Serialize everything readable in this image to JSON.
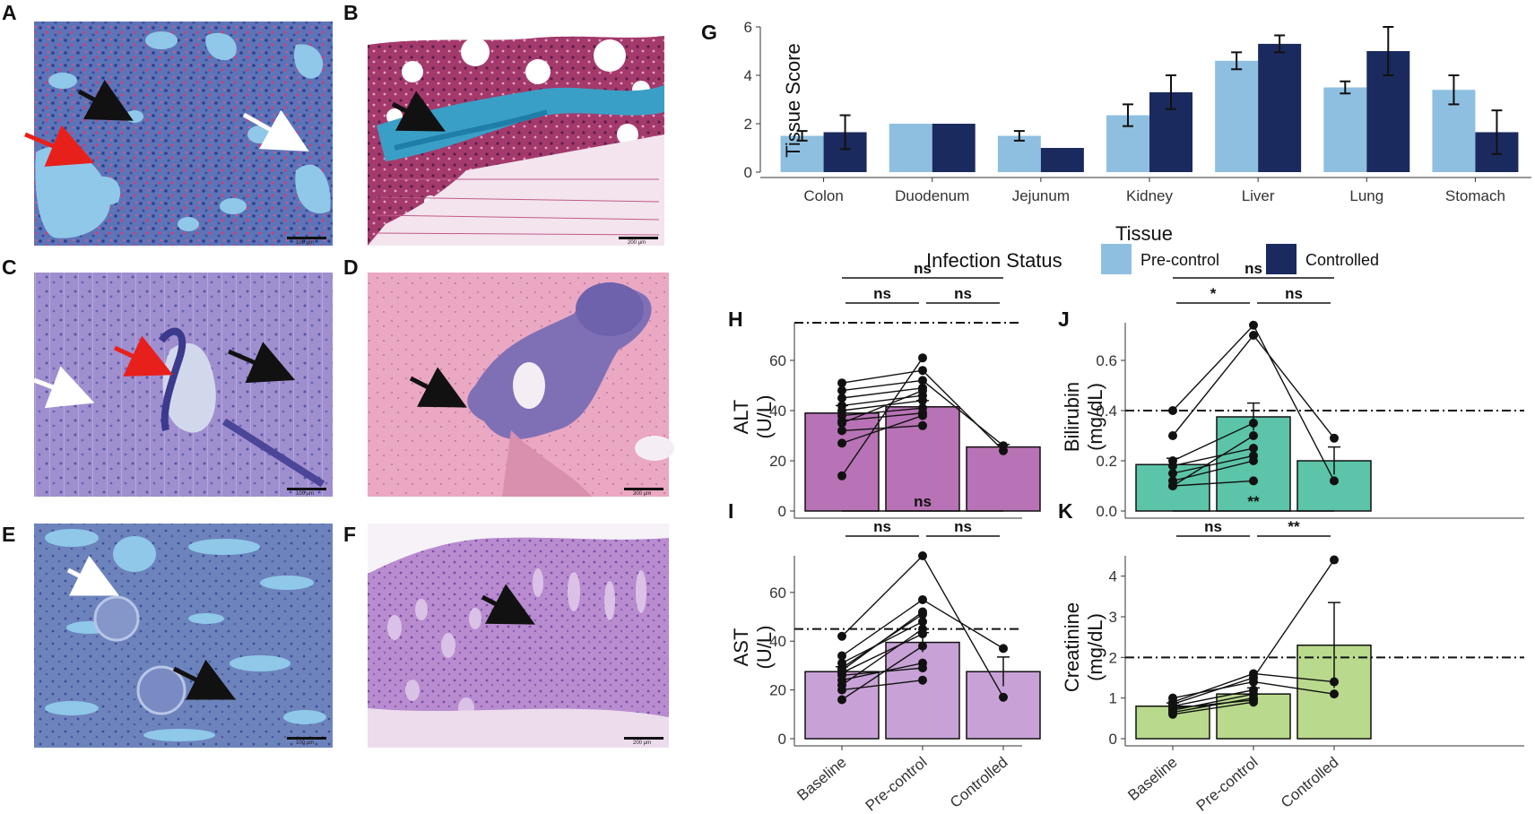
{
  "panels": {
    "A": {
      "label": "A",
      "kind": "lung"
    },
    "B": {
      "label": "B",
      "kind": "lung-trichrome"
    },
    "C": {
      "label": "C",
      "kind": "liver"
    },
    "D": {
      "label": "D",
      "kind": "liver-pink"
    },
    "E": {
      "label": "E",
      "kind": "kidney"
    },
    "F": {
      "label": "F",
      "kind": "stomach"
    }
  },
  "scalebars": {
    "A": "100 µm",
    "B": "200 µm",
    "C": "100 µm",
    "D": "200 µm",
    "E": "100 µm",
    "F": "200 µm"
  },
  "colors": {
    "precontrol": "#8fbfe0",
    "controlled": "#1b2a5e",
    "alt": "#b773b5",
    "ast": "#c8a2d6",
    "bilirubin": "#5cc4a8",
    "creatinine": "#b9d98c"
  },
  "legend": {
    "title": "Infection Status",
    "items": [
      {
        "label": "Pre-control",
        "color": "#8fbfe0"
      },
      {
        "label": "Controlled",
        "color": "#1b2a5e"
      }
    ]
  },
  "chart_data": [
    {
      "panel": "G",
      "type": "bar",
      "xlabel": "Tissue",
      "ylabel": "Tissue Score",
      "ylim": [
        0,
        6
      ],
      "yticks": [
        0,
        2,
        4,
        6
      ],
      "categories": [
        "Colon",
        "Duodenum",
        "Jejunum",
        "Kidney",
        "Liver",
        "Lung",
        "Stomach"
      ],
      "series": [
        {
          "name": "Pre-control",
          "values": [
            1.5,
            2.0,
            1.5,
            2.35,
            4.6,
            3.5,
            3.4
          ],
          "err": [
            0.2,
            0.0,
            0.2,
            0.45,
            0.35,
            0.25,
            0.6
          ]
        },
        {
          "name": "Controlled",
          "values": [
            1.65,
            2.0,
            1.0,
            3.3,
            5.3,
            5.0,
            1.65
          ],
          "err": [
            0.7,
            0.0,
            0.0,
            0.7,
            0.35,
            1.0,
            0.9
          ]
        }
      ]
    },
    {
      "panel": "H",
      "type": "bar",
      "ylabel": "ALT\n(U/L)",
      "ylim": [
        0,
        75
      ],
      "yticks": [
        0,
        20,
        40,
        60
      ],
      "refline": 75,
      "categories": [
        "Baseline",
        "Pre-control",
        "Controlled"
      ],
      "values": [
        39,
        41.5,
        25.5
      ],
      "err": [
        3,
        2.5,
        1
      ],
      "points": [
        [
          14,
          61
        ],
        [
          27,
          38
        ],
        [
          32,
          34
        ],
        [
          35,
          48
        ],
        [
          36,
          39
        ],
        [
          38,
          41
        ],
        [
          40,
          44
        ],
        [
          42,
          46
        ],
        [
          45,
          49
        ],
        [
          48,
          52
        ],
        [
          51,
          56
        ]
      ],
      "controlled_points": [
        24,
        26
      ],
      "comparisons": [
        {
          "from": 0,
          "to": 1,
          "label": "ns",
          "level": 0
        },
        {
          "from": 1,
          "to": 2,
          "label": "ns",
          "level": 0
        },
        {
          "from": 0,
          "to": 2,
          "label": "ns",
          "level": 1
        }
      ]
    },
    {
      "panel": "I",
      "type": "bar",
      "ylabel": "AST\n(U/L)",
      "ylim": [
        0,
        75
      ],
      "yticks": [
        0,
        20,
        40,
        60
      ],
      "refline": 45,
      "categories": [
        "Baseline",
        "Pre-control",
        "Controlled"
      ],
      "values": [
        27.5,
        39.5,
        27.5
      ],
      "err": [
        2,
        4,
        6
      ],
      "points": [
        [
          16,
          38
        ],
        [
          20,
          24
        ],
        [
          22,
          45
        ],
        [
          24,
          31
        ],
        [
          26,
          29
        ],
        [
          27,
          43
        ],
        [
          28,
          52
        ],
        [
          29,
          51
        ],
        [
          31,
          48
        ],
        [
          34,
          57
        ],
        [
          42,
          75
        ]
      ],
      "controlled_points": [
        17,
        37
      ],
      "comparisons": [
        {
          "from": 0,
          "to": 1,
          "label": "ns",
          "level": 0
        },
        {
          "from": 1,
          "to": 2,
          "label": "ns",
          "level": 0
        },
        {
          "from": 0,
          "to": 2,
          "label": "ns",
          "level": 1
        }
      ]
    },
    {
      "panel": "J",
      "type": "bar",
      "ylabel": "Bilirubin\n(mg/dL)",
      "ylim": [
        0,
        0.75
      ],
      "yticks": [
        0.0,
        0.2,
        0.4,
        0.6
      ],
      "refline": 0.4,
      "categories": [
        "Baseline",
        "Pre-control",
        "Controlled"
      ],
      "values": [
        0.185,
        0.375,
        0.2
      ],
      "err": [
        0.025,
        0.055,
        0.055
      ],
      "points": [
        [
          0.1,
          0.12
        ],
        [
          0.1,
          0.3
        ],
        [
          0.12,
          0.2
        ],
        [
          0.15,
          0.22
        ],
        [
          0.18,
          0.25
        ],
        [
          0.2,
          0.35
        ],
        [
          0.3,
          0.7
        ],
        [
          0.4,
          0.74
        ]
      ],
      "controlled_points": [
        0.12,
        0.29
      ],
      "comparisons": [
        {
          "from": 0,
          "to": 1,
          "label": "*",
          "level": 0
        },
        {
          "from": 1,
          "to": 2,
          "label": "ns",
          "level": 0
        },
        {
          "from": 0,
          "to": 2,
          "label": "ns",
          "level": 1
        }
      ]
    },
    {
      "panel": "K",
      "type": "bar",
      "ylabel": "Creatinine\n(mg/dL)",
      "ylim": [
        0,
        4.5
      ],
      "yticks": [
        0,
        1,
        2,
        3,
        4
      ],
      "refline": 2,
      "categories": [
        "Baseline",
        "Pre-control",
        "Controlled"
      ],
      "values": [
        0.8,
        1.1,
        2.3
      ],
      "err": [
        0.08,
        0.15,
        1.05
      ],
      "points": [
        [
          0.6,
          0.9
        ],
        [
          0.65,
          1.0
        ],
        [
          0.7,
          1.1
        ],
        [
          0.75,
          0.95
        ],
        [
          0.8,
          1.2
        ],
        [
          0.85,
          1.5
        ],
        [
          0.9,
          1.6
        ],
        [
          1.0,
          1.4
        ]
      ],
      "controlled_points": [
        1.1,
        1.4,
        4.4
      ],
      "comparisons": [
        {
          "from": 0,
          "to": 1,
          "label": "ns",
          "level": 0
        },
        {
          "from": 1,
          "to": 2,
          "label": "**",
          "level": 0
        },
        {
          "from": 0,
          "to": 2,
          "label": "**",
          "level": 1
        }
      ]
    }
  ]
}
